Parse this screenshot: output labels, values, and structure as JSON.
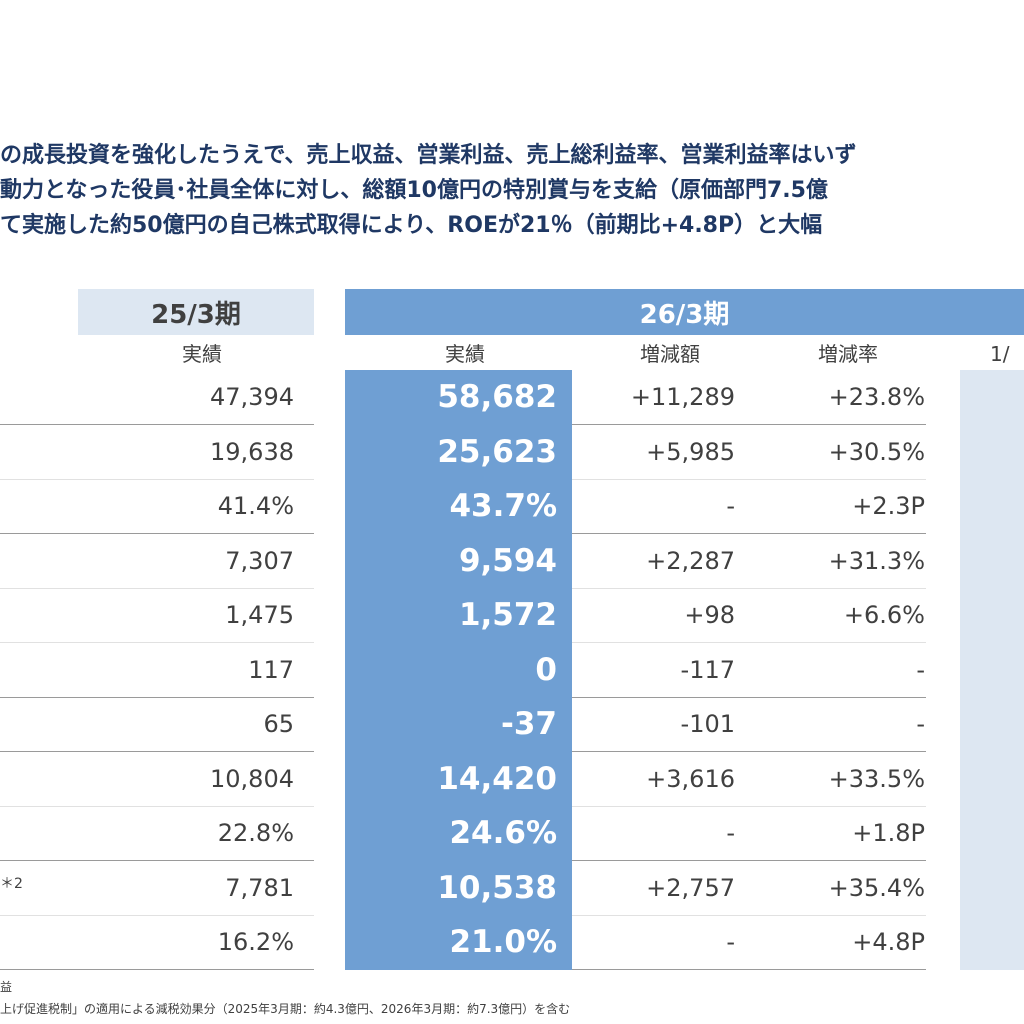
{
  "summary": {
    "line1": "の成長投資を強化したうえで、売上収益、営業利益、売上総利益率、営業利益率はいず",
    "line2": "動力となった役員･社員全体に対し、総額10億円の特別賞与を支給（原価部門7.5億",
    "line3": "て実施した約50億円の自己株式取得により、ROEが21％（前期比+4.8P）と大幅"
  },
  "header": {
    "prev_period": "25/3期",
    "cur_period": "26/3期",
    "prev_actual": "実績",
    "cur_actual": "実績",
    "change_amount": "増減額",
    "change_rate": "増減率",
    "cut_label": "1/"
  },
  "rows": [
    {
      "prev": "47,394",
      "actual": "58,682",
      "change": "+11,289",
      "rate": "+23.8%"
    },
    {
      "prev": "19,638",
      "actual": "25,623",
      "change": "+5,985",
      "rate": "+30.5%"
    },
    {
      "prev": "41.4%",
      "actual": "43.7%",
      "change": "-",
      "rate": "+2.3P"
    },
    {
      "prev": "7,307",
      "actual": "9,594",
      "change": "+2,287",
      "rate": "+31.3%"
    },
    {
      "prev": "1,475",
      "actual": "1,572",
      "change": "+98",
      "rate": "+6.6%"
    },
    {
      "prev": "117",
      "actual": "0",
      "change": "-117",
      "rate": "-"
    },
    {
      "prev": "65",
      "actual": "-37",
      "change": "-101",
      "rate": "-"
    },
    {
      "prev": "10,804",
      "actual": "14,420",
      "change": "+3,616",
      "rate": "+33.5%"
    },
    {
      "prev": "22.8%",
      "actual": "24.6%",
      "change": "-",
      "rate": "+1.8P"
    },
    {
      "prev": "7,781",
      "actual": "10,538",
      "change": "+2,757",
      "rate": "+35.4%"
    },
    {
      "prev": "16.2%",
      "actual": "21.0%",
      "change": "-",
      "rate": "+4.8P"
    }
  ],
  "note_mark": "＊2",
  "footnotes": {
    "line1": "益",
    "line2": "上げ促進税制」の適用による減税効果分（2025年3月期：約4.3億円、2026年3月期：約7.3億円）を含む"
  },
  "colors": {
    "accent_blue": "#6f9fd3",
    "light_blue": "#dde7f2",
    "heading_navy": "#1f3864"
  }
}
